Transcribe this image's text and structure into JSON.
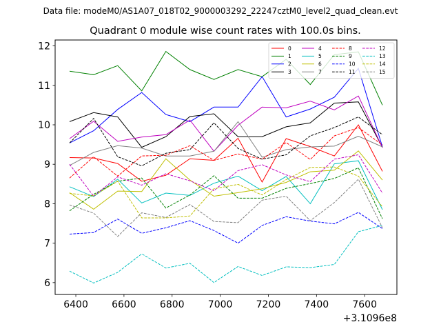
{
  "header": {
    "suptitle": "Data file: modeM0/AS1A07_018T02_9000003292_22247cztM0_level2_quad_clean.evt"
  },
  "chart_data": {
    "type": "line",
    "title": "Quadrant 0 module wise count rates with 100.0s bins.",
    "xlabel": "",
    "ylabel": "",
    "x_offset_label": "+3.1096e8",
    "x": [
      6374,
      6474,
      6574,
      6674,
      6774,
      6874,
      6974,
      7074,
      7174,
      7274,
      7374,
      7474,
      7574,
      7674
    ],
    "xlim": [
      6314,
      7734
    ],
    "ylim": [
      5.7,
      12.15
    ],
    "xticks": [
      6400,
      6600,
      6800,
      7000,
      7200,
      7400,
      7600
    ],
    "yticks": [
      6,
      7,
      8,
      9,
      10,
      11,
      12
    ],
    "grid": false,
    "legend_position": "top-right",
    "legend_columns": 4,
    "series": [
      {
        "name": "0",
        "color": "#ff0000",
        "dash": "solid",
        "values": [
          9.17,
          9.16,
          9.02,
          8.57,
          8.72,
          9.14,
          9.1,
          9.66,
          8.55,
          9.65,
          9.45,
          9.21,
          10.0,
          8.82
        ]
      },
      {
        "name": "1",
        "color": "#008000",
        "dash": "solid",
        "values": [
          11.36,
          11.27,
          11.5,
          10.86,
          11.86,
          11.4,
          11.15,
          11.4,
          11.22,
          11.66,
          11.02,
          11.78,
          11.85,
          10.5
        ]
      },
      {
        "name": "2",
        "color": "#0000ff",
        "dash": "solid",
        "values": [
          9.54,
          9.85,
          10.39,
          10.82,
          10.26,
          10.08,
          10.45,
          10.45,
          11.22,
          10.2,
          10.4,
          10.7,
          11.43,
          9.44
        ]
      },
      {
        "name": "3",
        "color": "#000000",
        "dash": "solid",
        "values": [
          10.08,
          10.31,
          10.2,
          9.43,
          9.7,
          10.21,
          10.28,
          9.7,
          9.7,
          9.95,
          10.05,
          10.55,
          10.58,
          9.43
        ]
      },
      {
        "name": "4",
        "color": "#bf00bf",
        "dash": "solid",
        "values": [
          9.65,
          10.09,
          9.58,
          9.69,
          9.75,
          10.12,
          9.33,
          9.99,
          10.45,
          10.43,
          10.6,
          10.38,
          10.73,
          9.42
        ]
      },
      {
        "name": "5",
        "color": "#00bfbf",
        "dash": "solid",
        "values": [
          8.43,
          8.18,
          8.62,
          8.02,
          8.27,
          8.21,
          8.52,
          8.7,
          8.33,
          8.69,
          8.0,
          9.01,
          9.09,
          7.85
        ]
      },
      {
        "name": "6",
        "color": "#bfbf00",
        "dash": "solid",
        "values": [
          8.28,
          7.86,
          8.32,
          8.31,
          9.14,
          8.6,
          8.19,
          8.28,
          8.38,
          8.54,
          8.81,
          8.85,
          9.34,
          8.6
        ]
      },
      {
        "name": "7",
        "color": "#808080",
        "dash": "solid",
        "values": [
          8.97,
          9.3,
          9.47,
          9.41,
          9.21,
          9.21,
          9.33,
          10.08,
          9.18,
          9.37,
          9.44,
          9.46,
          9.71,
          9.44
        ]
      },
      {
        "name": "8",
        "color": "#ff0000",
        "dash": "dashed",
        "values": [
          8.65,
          9.19,
          8.7,
          9.21,
          9.23,
          9.47,
          9.1,
          9.26,
          9.13,
          9.55,
          9.12,
          9.72,
          9.93,
          9.49
        ]
      },
      {
        "name": "9",
        "color": "#008000",
        "dash": "dashed",
        "values": [
          7.82,
          8.24,
          8.57,
          8.65,
          7.89,
          8.22,
          8.71,
          8.14,
          8.14,
          8.39,
          8.51,
          8.64,
          8.91,
          7.62
        ]
      },
      {
        "name": "10",
        "color": "#0000ff",
        "dash": "dashed",
        "values": [
          7.23,
          7.27,
          7.61,
          7.25,
          7.39,
          7.57,
          7.32,
          7.0,
          7.45,
          7.67,
          7.56,
          7.49,
          7.78,
          7.37
        ]
      },
      {
        "name": "11",
        "color": "#000000",
        "dash": "dashed",
        "values": [
          9.54,
          10.16,
          9.19,
          8.96,
          9.28,
          9.37,
          10.05,
          9.4,
          9.13,
          9.24,
          9.72,
          9.93,
          10.2,
          9.75
        ]
      },
      {
        "name": "12",
        "color": "#bf00bf",
        "dash": "dashed",
        "values": [
          9.0,
          8.19,
          8.68,
          8.47,
          8.76,
          8.58,
          8.33,
          8.84,
          8.99,
          8.73,
          8.56,
          9.13,
          9.24,
          8.27
        ]
      },
      {
        "name": "13",
        "color": "#00bfbf",
        "dash": "dashed",
        "values": [
          6.29,
          5.99,
          6.26,
          6.73,
          6.37,
          6.49,
          6.0,
          6.41,
          6.18,
          6.4,
          6.38,
          6.46,
          7.29,
          7.45
        ]
      },
      {
        "name": "14",
        "color": "#bfbf00",
        "dash": "dashed",
        "values": [
          8.26,
          8.2,
          8.57,
          7.64,
          7.64,
          7.69,
          8.38,
          8.49,
          8.22,
          8.61,
          8.92,
          8.93,
          8.7,
          7.92
        ]
      },
      {
        "name": "15",
        "color": "#808080",
        "dash": "dashed",
        "values": [
          7.97,
          7.76,
          7.17,
          7.77,
          7.65,
          7.98,
          7.55,
          7.52,
          8.09,
          8.19,
          7.57,
          8.03,
          8.62,
          7.39
        ]
      }
    ]
  }
}
